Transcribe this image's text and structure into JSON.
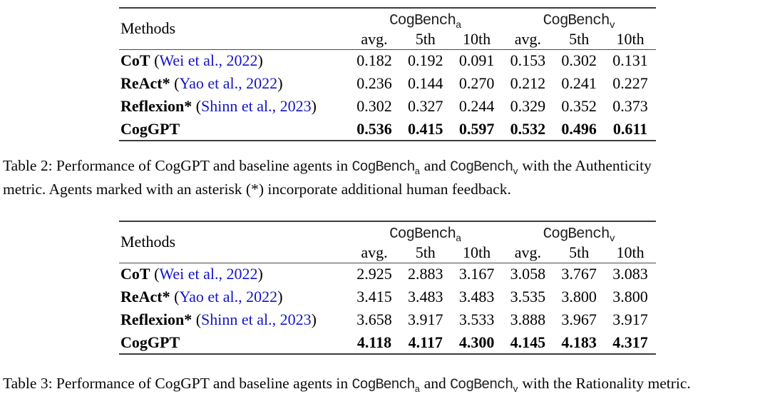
{
  "colors": {
    "background": "#ffffff",
    "text": "#000000",
    "citation_link": "#1414c8",
    "rule": "#3d3d3d"
  },
  "table_a": {
    "methods_label": "Methods",
    "group_a": {
      "name": "CogBench",
      "sub": "a"
    },
    "group_v": {
      "name": "CogBench",
      "sub": "v"
    },
    "columns": [
      "avg.",
      "5th",
      "10th",
      "avg.",
      "5th",
      "10th"
    ],
    "rows": [
      {
        "name": "CoT",
        "cite_prefix": " (",
        "cite": "Wei et al., 2022",
        "cite_suffix": ")",
        "values": [
          "0.182",
          "0.192",
          "0.091",
          "0.153",
          "0.302",
          "0.131"
        ]
      },
      {
        "name": "ReAct*",
        "cite_prefix": " (",
        "cite": "Yao et al., 2022",
        "cite_suffix": ")",
        "values": [
          "0.236",
          "0.144",
          "0.270",
          "0.212",
          "0.241",
          "0.227"
        ]
      },
      {
        "name": "Reflexion*",
        "cite_prefix": " (",
        "cite": "Shinn et al., 2023",
        "cite_suffix": ")",
        "values": [
          "0.302",
          "0.327",
          "0.244",
          "0.329",
          "0.352",
          "0.373"
        ]
      },
      {
        "name": "CogGPT",
        "cite_prefix": "",
        "cite": "",
        "cite_suffix": "",
        "values": [
          "0.536",
          "0.415",
          "0.597",
          "0.532",
          "0.496",
          "0.611"
        ]
      }
    ],
    "caption": {
      "line1_pre": "Table 2:  Performance of CogGPT and baseline agents in ",
      "bench1": "CogBench",
      "bench1_sub": "a",
      "line1_mid": " and ",
      "bench2": "CogBench",
      "bench2_sub": "v",
      "line1_post": " with the Authenticity",
      "line2": "metric. Agents marked with an asterisk (*) incorporate additional human feedback."
    }
  },
  "table_b": {
    "methods_label": "Methods",
    "group_a": {
      "name": "CogBench",
      "sub": "a"
    },
    "group_v": {
      "name": "CogBench",
      "sub": "v"
    },
    "columns": [
      "avg.",
      "5th",
      "10th",
      "avg.",
      "5th",
      "10th"
    ],
    "rows": [
      {
        "name": "CoT",
        "cite_prefix": " (",
        "cite": "Wei et al., 2022",
        "cite_suffix": ")",
        "values": [
          "2.925",
          "2.883",
          "3.167",
          "3.058",
          "3.767",
          "3.083"
        ]
      },
      {
        "name": "ReAct*",
        "cite_prefix": " (",
        "cite": "Yao et al., 2022",
        "cite_suffix": ")",
        "values": [
          "3.415",
          "3.483",
          "3.483",
          "3.535",
          "3.800",
          "3.800"
        ]
      },
      {
        "name": "Reflexion*",
        "cite_prefix": " (",
        "cite": "Shinn et al., 2023",
        "cite_suffix": ")",
        "values": [
          "3.658",
          "3.917",
          "3.533",
          "3.888",
          "3.967",
          "3.917"
        ]
      },
      {
        "name": "CogGPT",
        "cite_prefix": "",
        "cite": "",
        "cite_suffix": "",
        "values": [
          "4.118",
          "4.117",
          "4.300",
          "4.145",
          "4.183",
          "4.317"
        ]
      }
    ],
    "caption": {
      "line1_pre": "Table 3: Performance of CogGPT and baseline agents in ",
      "bench1": "CogBench",
      "bench1_sub": "a",
      "line1_mid": " and ",
      "bench2": "CogBench",
      "bench2_sub": "v",
      "line1_post": " with the Rationality metric.",
      "line2": ""
    }
  }
}
